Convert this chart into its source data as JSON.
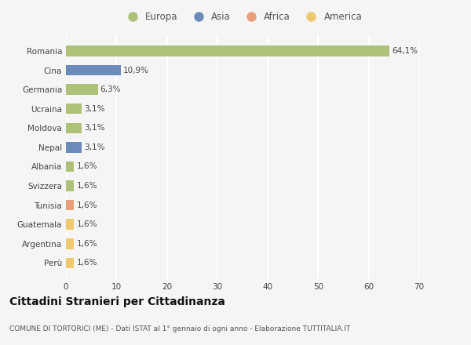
{
  "countries": [
    "Romania",
    "Cina",
    "Germania",
    "Ucraina",
    "Moldova",
    "Nepal",
    "Albania",
    "Svizzera",
    "Tunisia",
    "Guatemala",
    "Argentina",
    "Perù"
  ],
  "values": [
    64.1,
    10.9,
    6.3,
    3.1,
    3.1,
    3.1,
    1.6,
    1.6,
    1.6,
    1.6,
    1.6,
    1.6
  ],
  "labels": [
    "64,1%",
    "10,9%",
    "6,3%",
    "3,1%",
    "3,1%",
    "3,1%",
    "1,6%",
    "1,6%",
    "1,6%",
    "1,6%",
    "1,6%",
    "1,6%"
  ],
  "colors": [
    "#adc178",
    "#6b8cba",
    "#adc178",
    "#adc178",
    "#adc178",
    "#6b8cba",
    "#adc178",
    "#adc178",
    "#e8a07a",
    "#f0c96e",
    "#f0c96e",
    "#f0c96e"
  ],
  "legend_labels": [
    "Europa",
    "Asia",
    "Africa",
    "America"
  ],
  "legend_colors": [
    "#adc178",
    "#6b8cba",
    "#e8a07a",
    "#f0c96e"
  ],
  "xlim": [
    0,
    70
  ],
  "xticks": [
    0,
    10,
    20,
    30,
    40,
    50,
    60,
    70
  ],
  "title": "Cittadini Stranieri per Cittadinanza",
  "subtitle": "COMUNE DI TORTORICI (ME) - Dati ISTAT al 1° gennaio di ogni anno - Elaborazione TUTTITALIA.IT",
  "background_color": "#f5f5f5",
  "grid_color": "#ffffff",
  "bar_height": 0.55,
  "label_fontsize": 7.5,
  "ytick_fontsize": 7.5,
  "xtick_fontsize": 7.5,
  "legend_fontsize": 8.5,
  "title_fontsize": 10,
  "subtitle_fontsize": 6.5
}
